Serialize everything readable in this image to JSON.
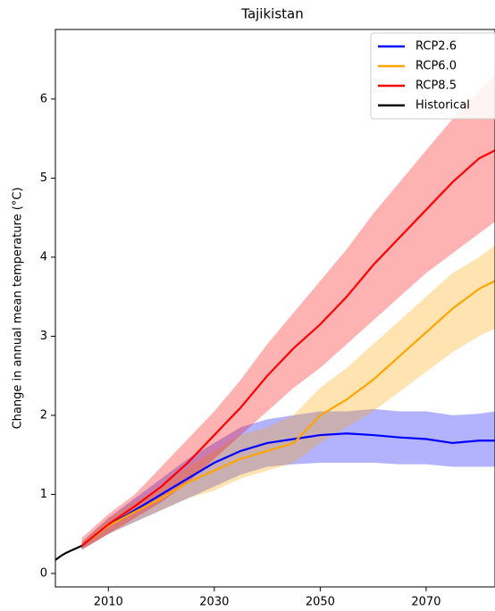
{
  "chart_data": {
    "type": "line",
    "title": "Tajikistan",
    "ylabel": "Change in annual mean temperature (°C)",
    "xlim": [
      2000,
      2083
    ],
    "ylim": [
      -0.17,
      6.88
    ],
    "xticks": [
      2010,
      2030,
      2050,
      2070
    ],
    "yticks": [
      0,
      1,
      2,
      3,
      4,
      5,
      6
    ],
    "legend": "upper right",
    "series": [
      {
        "name": "RCP2.6",
        "color": "#0000ff",
        "x": [
          2005,
          2010,
          2015,
          2020,
          2025,
          2030,
          2035,
          2040,
          2045,
          2050,
          2055,
          2060,
          2065,
          2070,
          2075,
          2080,
          2083
        ],
        "values": [
          0.35,
          0.6,
          0.8,
          1.0,
          1.2,
          1.4,
          1.55,
          1.65,
          1.7,
          1.75,
          1.77,
          1.75,
          1.72,
          1.7,
          1.65,
          1.68,
          1.68
        ],
        "lower": [
          0.3,
          0.5,
          0.65,
          0.8,
          0.95,
          1.1,
          1.25,
          1.35,
          1.38,
          1.4,
          1.4,
          1.4,
          1.38,
          1.38,
          1.35,
          1.35,
          1.35
        ],
        "upper": [
          0.4,
          0.7,
          0.95,
          1.2,
          1.45,
          1.65,
          1.85,
          1.95,
          2.0,
          2.05,
          2.05,
          2.08,
          2.05,
          2.05,
          2.0,
          2.02,
          2.05
        ]
      },
      {
        "name": "RCP6.0",
        "color": "#ffa500",
        "x": [
          2005,
          2010,
          2015,
          2020,
          2025,
          2030,
          2035,
          2040,
          2045,
          2050,
          2055,
          2060,
          2065,
          2070,
          2075,
          2080,
          2083
        ],
        "values": [
          0.35,
          0.6,
          0.78,
          0.95,
          1.15,
          1.3,
          1.45,
          1.55,
          1.65,
          2.0,
          2.2,
          2.45,
          2.75,
          3.05,
          3.35,
          3.6,
          3.7
        ],
        "lower": [
          0.3,
          0.5,
          0.65,
          0.8,
          0.95,
          1.05,
          1.2,
          1.3,
          1.4,
          1.65,
          1.85,
          2.05,
          2.3,
          2.55,
          2.8,
          3.0,
          3.1
        ],
        "upper": [
          0.4,
          0.7,
          0.9,
          1.1,
          1.35,
          1.55,
          1.75,
          1.85,
          2.0,
          2.35,
          2.6,
          2.9,
          3.2,
          3.5,
          3.8,
          4.0,
          4.15
        ]
      },
      {
        "name": "RCP8.5",
        "color": "#ff0000",
        "x": [
          2005,
          2010,
          2015,
          2020,
          2025,
          2030,
          2035,
          2040,
          2045,
          2050,
          2055,
          2060,
          2065,
          2070,
          2075,
          2080,
          2083
        ],
        "values": [
          0.35,
          0.62,
          0.85,
          1.1,
          1.4,
          1.75,
          2.1,
          2.5,
          2.85,
          3.15,
          3.5,
          3.9,
          4.25,
          4.6,
          4.95,
          5.25,
          5.35
        ],
        "lower": [
          0.3,
          0.5,
          0.7,
          0.9,
          1.15,
          1.45,
          1.75,
          2.05,
          2.35,
          2.6,
          2.9,
          3.2,
          3.5,
          3.8,
          4.05,
          4.3,
          4.45
        ],
        "upper": [
          0.45,
          0.75,
          1.0,
          1.35,
          1.7,
          2.05,
          2.45,
          2.9,
          3.3,
          3.7,
          4.1,
          4.55,
          4.95,
          5.35,
          5.75,
          6.1,
          6.3
        ]
      },
      {
        "name": "Historical",
        "color": "#000000",
        "x": [
          2000,
          2001,
          2002,
          2003,
          2004,
          2005
        ],
        "values": [
          0.17,
          0.22,
          0.26,
          0.29,
          0.32,
          0.35
        ]
      }
    ]
  }
}
